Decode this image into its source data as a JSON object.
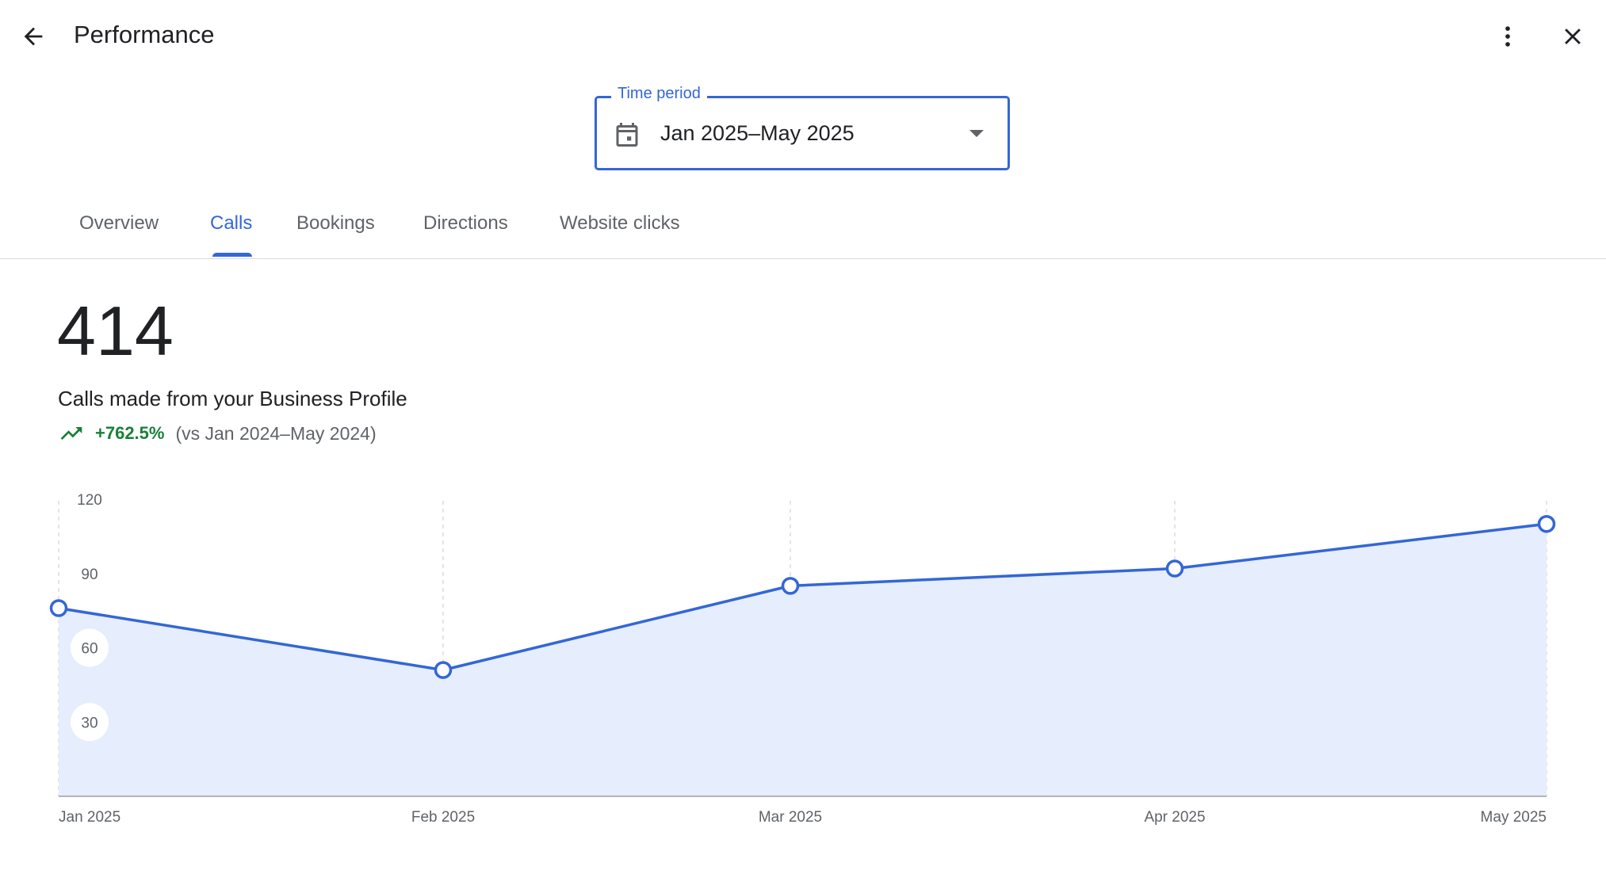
{
  "header": {
    "title": "Performance",
    "back_icon": "arrow-back-icon",
    "more_icon": "more-vert-icon",
    "close_icon": "close-icon"
  },
  "time_period": {
    "label": "Time period",
    "value": "Jan 2025–May 2025",
    "icon": "calendar-icon"
  },
  "tabs": [
    {
      "label": "Overview",
      "active": false
    },
    {
      "label": "Calls",
      "active": true
    },
    {
      "label": "Bookings",
      "active": false
    },
    {
      "label": "Directions",
      "active": false
    },
    {
      "label": "Website clicks",
      "active": false
    }
  ],
  "summary": {
    "total": "414",
    "description": "Calls made from your Business Profile",
    "change": "+762.5%",
    "comparison": "(vs Jan 2024–May 2024)",
    "trend_icon": "trending-up-icon"
  },
  "colors": {
    "accent": "#3367d6",
    "positive": "#188038",
    "area_fill": "#e6edfc"
  },
  "chart_data": {
    "type": "area",
    "categories": [
      "Jan 2025",
      "Feb 2025",
      "Mar 2025",
      "Apr 2025",
      "May 2025"
    ],
    "series": [
      {
        "values": [
          76,
          51,
          85,
          92,
          110
        ]
      }
    ],
    "yticks": [
      "30",
      "60",
      "90",
      "120"
    ],
    "ylim": [
      0,
      120
    ],
    "grid": "vertical dashed",
    "legend": "none"
  }
}
